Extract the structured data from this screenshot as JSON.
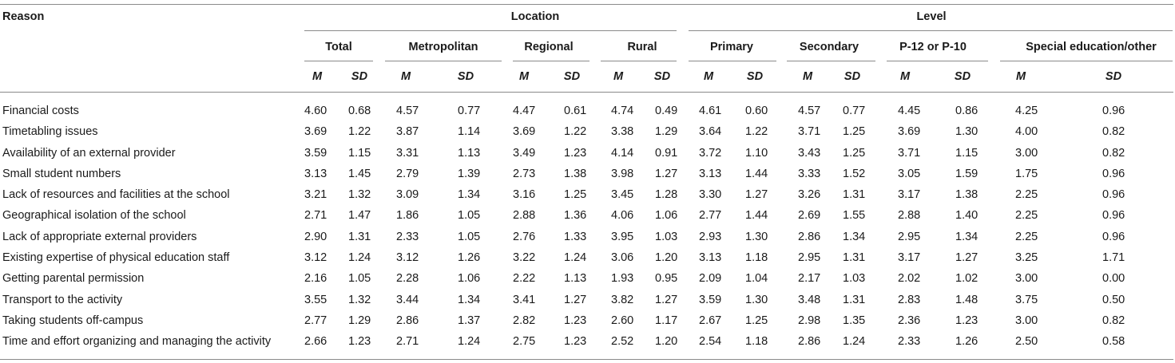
{
  "header": {
    "reason": "Reason",
    "location": "Location",
    "level": "Level",
    "total": "Total",
    "metropolitan": "Metropolitan",
    "regional": "Regional",
    "rural": "Rural",
    "primary": "Primary",
    "secondary": "Secondary",
    "p12": "P-12 or P-10",
    "special": "Special education/other",
    "m": "M",
    "sd": "SD"
  },
  "rows": [
    {
      "reason": "Financial costs",
      "v": [
        "4.60",
        "0.68",
        "4.57",
        "0.77",
        "4.47",
        "0.61",
        "4.74",
        "0.49",
        "4.61",
        "0.60",
        "4.57",
        "0.77",
        "4.45",
        "0.86",
        "4.25",
        "0.96"
      ]
    },
    {
      "reason": "Timetabling issues",
      "v": [
        "3.69",
        "1.22",
        "3.87",
        "1.14",
        "3.69",
        "1.22",
        "3.38",
        "1.29",
        "3.64",
        "1.22",
        "3.71",
        "1.25",
        "3.69",
        "1.30",
        "4.00",
        "0.82"
      ]
    },
    {
      "reason": "Availability of an external provider",
      "v": [
        "3.59",
        "1.15",
        "3.31",
        "1.13",
        "3.49",
        "1.23",
        "4.14",
        "0.91",
        "3.72",
        "1.10",
        "3.43",
        "1.25",
        "3.71",
        "1.15",
        "3.00",
        "0.82"
      ]
    },
    {
      "reason": "Small student numbers",
      "v": [
        "3.13",
        "1.45",
        "2.79",
        "1.39",
        "2.73",
        "1.38",
        "3.98",
        "1.27",
        "3.13",
        "1.44",
        "3.33",
        "1.52",
        "3.05",
        "1.59",
        "1.75",
        "0.96"
      ]
    },
    {
      "reason": "Lack of resources and facilities at the school",
      "v": [
        "3.21",
        "1.32",
        "3.09",
        "1.34",
        "3.16",
        "1.25",
        "3.45",
        "1.28",
        "3.30",
        "1.27",
        "3.26",
        "1.31",
        "3.17",
        "1.38",
        "2.25",
        "0.96"
      ]
    },
    {
      "reason": "Geographical isolation of the school",
      "v": [
        "2.71",
        "1.47",
        "1.86",
        "1.05",
        "2.88",
        "1.36",
        "4.06",
        "1.06",
        "2.77",
        "1.44",
        "2.69",
        "1.55",
        "2.88",
        "1.40",
        "2.25",
        "0.96"
      ]
    },
    {
      "reason": "Lack of appropriate external providers",
      "v": [
        "2.90",
        "1.31",
        "2.33",
        "1.05",
        "2.76",
        "1.33",
        "3.95",
        "1.03",
        "2.93",
        "1.30",
        "2.86",
        "1.34",
        "2.95",
        "1.34",
        "2.25",
        "0.96"
      ]
    },
    {
      "reason": "Existing expertise of physical education staff",
      "v": [
        "3.12",
        "1.24",
        "3.12",
        "1.26",
        "3.22",
        "1.24",
        "3.06",
        "1.20",
        "3.13",
        "1.18",
        "2.95",
        "1.31",
        "3.17",
        "1.27",
        "3.25",
        "1.71"
      ]
    },
    {
      "reason": "Getting parental permission",
      "v": [
        "2.16",
        "1.05",
        "2.28",
        "1.06",
        "2.22",
        "1.13",
        "1.93",
        "0.95",
        "2.09",
        "1.04",
        "2.17",
        "1.03",
        "2.02",
        "1.02",
        "3.00",
        "0.00"
      ]
    },
    {
      "reason": "Transport to the activity",
      "v": [
        "3.55",
        "1.32",
        "3.44",
        "1.34",
        "3.41",
        "1.27",
        "3.82",
        "1.27",
        "3.59",
        "1.30",
        "3.48",
        "1.31",
        "2.83",
        "1.48",
        "3.75",
        "0.50"
      ]
    },
    {
      "reason": "Taking students off-campus",
      "v": [
        "2.77",
        "1.29",
        "2.86",
        "1.37",
        "2.82",
        "1.23",
        "2.60",
        "1.17",
        "2.67",
        "1.25",
        "2.98",
        "1.35",
        "2.36",
        "1.23",
        "3.00",
        "0.82"
      ]
    },
    {
      "reason": "Time and effort organizing and managing the activity",
      "v": [
        "2.66",
        "1.23",
        "2.71",
        "1.24",
        "2.75",
        "1.23",
        "2.52",
        "1.20",
        "2.54",
        "1.18",
        "2.86",
        "1.24",
        "2.33",
        "1.26",
        "2.50",
        "0.58"
      ]
    }
  ]
}
